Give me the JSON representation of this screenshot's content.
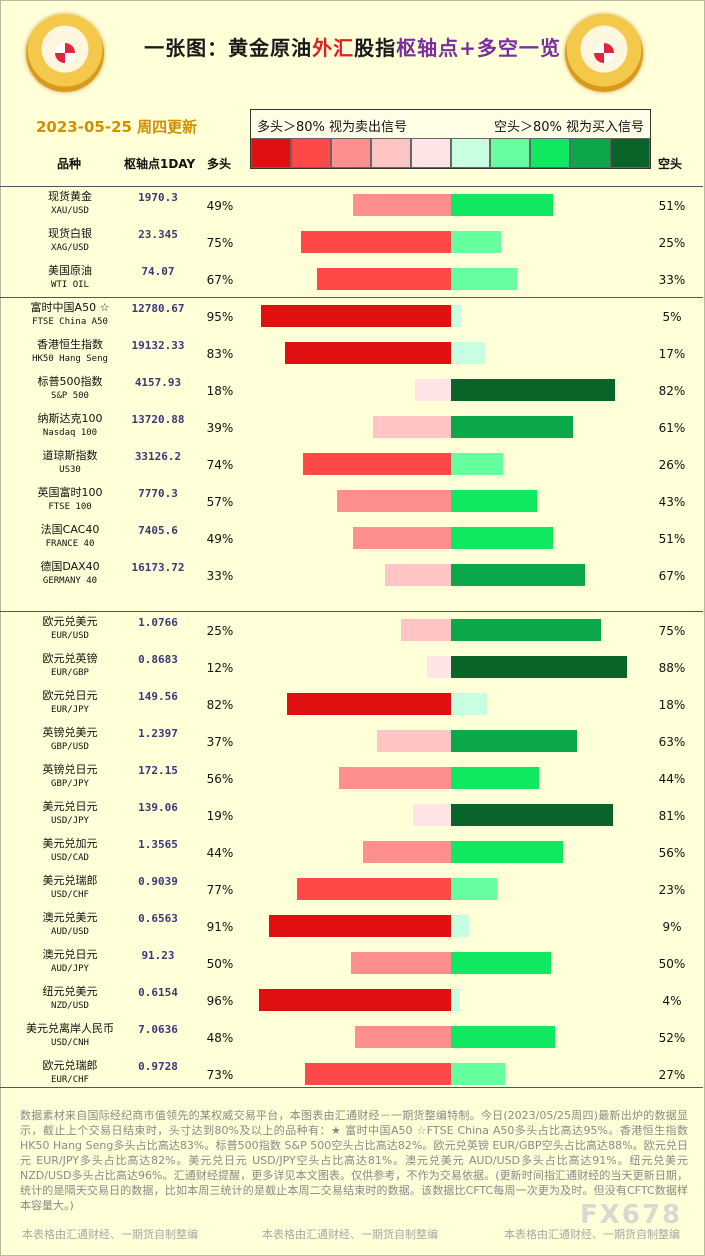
{
  "header": {
    "title_a": "一张图：黄金原油",
    "title_b": "外汇",
    "title_c": "股指",
    "title_d": "枢轴点",
    "title_e": "+多空一览",
    "date": "2023-05-25 周四更新"
  },
  "legend": {
    "left_text": "多头＞80% 视为卖出信号",
    "right_text": "空头＞80% 视为买入信号",
    "swatch_colors": [
      "#e01010",
      "#ff4848",
      "#ff8e8e",
      "#ffc4c4",
      "#ffe4e6",
      "#c8ffe0",
      "#66ffa0",
      "#10e860",
      "#0aa848",
      "#086428"
    ]
  },
  "columns": {
    "name": "品种",
    "pivot": "枢轴点1DAY",
    "long": "多头",
    "short": "空头"
  },
  "chart_data": {
    "type": "bar",
    "orientation": "horizontal-diverging",
    "groups": [
      "commodities",
      "indices",
      "forex"
    ],
    "rows": [
      {
        "name": "现货黄金",
        "code": "XAU/USD",
        "pivot": "1970.3",
        "long": 49,
        "short": 51,
        "long_label": "49%",
        "short_label": "51%",
        "group": 0
      },
      {
        "name": "现货白银",
        "code": "XAG/USD",
        "pivot": "23.345",
        "long": 75,
        "short": 25,
        "long_label": "75%",
        "short_label": "25%",
        "group": 0
      },
      {
        "name": "美国原油",
        "code": "WTI OIL",
        "pivot": "74.07",
        "long": 67,
        "short": 33,
        "long_label": "67%",
        "short_label": "33%",
        "group": 0
      },
      {
        "name": "富时中国A50 ☆",
        "code": "FTSE China A50",
        "pivot": "12780.67",
        "long": 95,
        "short": 5,
        "long_label": "95%",
        "short_label": "5%",
        "group": 1
      },
      {
        "name": "香港恒生指数",
        "code": "HK50 Hang Seng",
        "pivot": "19132.33",
        "long": 83,
        "short": 17,
        "long_label": "83%",
        "short_label": "17%",
        "group": 1
      },
      {
        "name": "标普500指数",
        "code": "S&P 500",
        "pivot": "4157.93",
        "long": 18,
        "short": 82,
        "long_label": "18%",
        "short_label": "82%",
        "group": 1
      },
      {
        "name": "纳斯达克100",
        "code": "Nasdaq 100",
        "pivot": "13720.88",
        "long": 39,
        "short": 61,
        "long_label": "39%",
        "short_label": "61%",
        "group": 1
      },
      {
        "name": "道琼斯指数",
        "code": "US30",
        "pivot": "33126.2",
        "long": 74,
        "short": 26,
        "long_label": "74%",
        "short_label": "26%",
        "group": 1
      },
      {
        "name": "英国富时100",
        "code": "FTSE 100",
        "pivot": "7770.3",
        "long": 57,
        "short": 43,
        "long_label": "57%",
        "short_label": "43%",
        "group": 1
      },
      {
        "name": "法国CAC40",
        "code": "FRANCE 40",
        "pivot": "7405.6",
        "long": 49,
        "short": 51,
        "long_label": "49%",
        "short_label": "51%",
        "group": 1
      },
      {
        "name": "德国DAX40",
        "code": "GERMANY 40",
        "pivot": "16173.72",
        "long": 33,
        "short": 67,
        "long_label": "33%",
        "short_label": "67%",
        "group": 1
      },
      {
        "name": "欧元兑美元",
        "code": "EUR/USD",
        "pivot": "1.0766",
        "long": 25,
        "short": 75,
        "long_label": "25%",
        "short_label": "75%",
        "group": 2
      },
      {
        "name": "欧元兑英镑",
        "code": "EUR/GBP",
        "pivot": "0.8683",
        "long": 12,
        "short": 88,
        "long_label": "12%",
        "short_label": "88%",
        "group": 2
      },
      {
        "name": "欧元兑日元",
        "code": "EUR/JPY",
        "pivot": "149.56",
        "long": 82,
        "short": 18,
        "long_label": "82%",
        "short_label": "18%",
        "group": 2
      },
      {
        "name": "英镑兑美元",
        "code": "GBP/USD",
        "pivot": "1.2397",
        "long": 37,
        "short": 63,
        "long_label": "37%",
        "short_label": "63%",
        "group": 2
      },
      {
        "name": "英镑兑日元",
        "code": "GBP/JPY",
        "pivot": "172.15",
        "long": 56,
        "short": 44,
        "long_label": "56%",
        "short_label": "44%",
        "group": 2
      },
      {
        "name": "美元兑日元",
        "code": "USD/JPY",
        "pivot": "139.06",
        "long": 19,
        "short": 81,
        "long_label": "19%",
        "short_label": "81%",
        "group": 2
      },
      {
        "name": "美元兑加元",
        "code": "USD/CAD",
        "pivot": "1.3565",
        "long": 44,
        "short": 56,
        "long_label": "44%",
        "short_label": "56%",
        "group": 2
      },
      {
        "name": "美元兑瑞郎",
        "code": "USD/CHF",
        "pivot": "0.9039",
        "long": 77,
        "short": 23,
        "long_label": "77%",
        "short_label": "23%",
        "group": 2
      },
      {
        "name": "澳元兑美元",
        "code": "AUD/USD",
        "pivot": "0.6563",
        "long": 91,
        "short": 9,
        "long_label": "91%",
        "short_label": "9%",
        "group": 2
      },
      {
        "name": "澳元兑日元",
        "code": "AUD/JPY",
        "pivot": "91.23",
        "long": 50,
        "short": 50,
        "long_label": "50%",
        "short_label": "50%",
        "group": 2
      },
      {
        "name": "纽元兑美元",
        "code": "NZD/USD",
        "pivot": "0.6154",
        "long": 96,
        "short": 4,
        "long_label": "96%",
        "short_label": "4%",
        "group": 2
      },
      {
        "name": "美元兑离岸人民币",
        "code": "USD/CNH",
        "pivot": "7.0636",
        "long": 48,
        "short": 52,
        "long_label": "48%",
        "short_label": "52%",
        "group": 2
      },
      {
        "name": "欧元兑瑞郎",
        "code": "EUR/CHF",
        "pivot": "0.9728",
        "long": 73,
        "short": 27,
        "long_label": "73%",
        "short_label": "27%",
        "group": 2
      }
    ]
  },
  "footer": {
    "text": "数据素材来自国际经纪商市值领先的某权威交易平台，本图表由汇通财经－一期货整编特制。今日(2023/05/25周四)最新出炉的数据显示，截止上个交易日结束时，头寸达到80%及以上的品种有：★ 富时中国A50 ☆FTSE China A50多头占比高达95%。香港恒生指数 HK50 Hang Seng多头占比高达83%。标普500指数 S&P 500空头占比高达82%。欧元兑英镑 EUR/GBP空头占比高达88%。欧元兑日元 EUR/JPY多头占比高达82%。美元兑日元 USD/JPY空头占比高达81%。澳元兑美元 AUD/USD多头占比高达91%。纽元兑美元 NZD/USD多头占比高达96%。汇通财经提醒，更多详见本文图表。仅供参考，不作为交易依据。(更新时间指汇通财经的当天更新日期，统计的是隔天交易日的数据，比如本周三统计的是截止本周二交易结束时的数据。该数据比CFTC每周一次更为及时。但没有CFTC数据样本容量大。)",
    "credit": "本表格由汇通财经、一期货自制整编",
    "watermark": "FX678"
  }
}
